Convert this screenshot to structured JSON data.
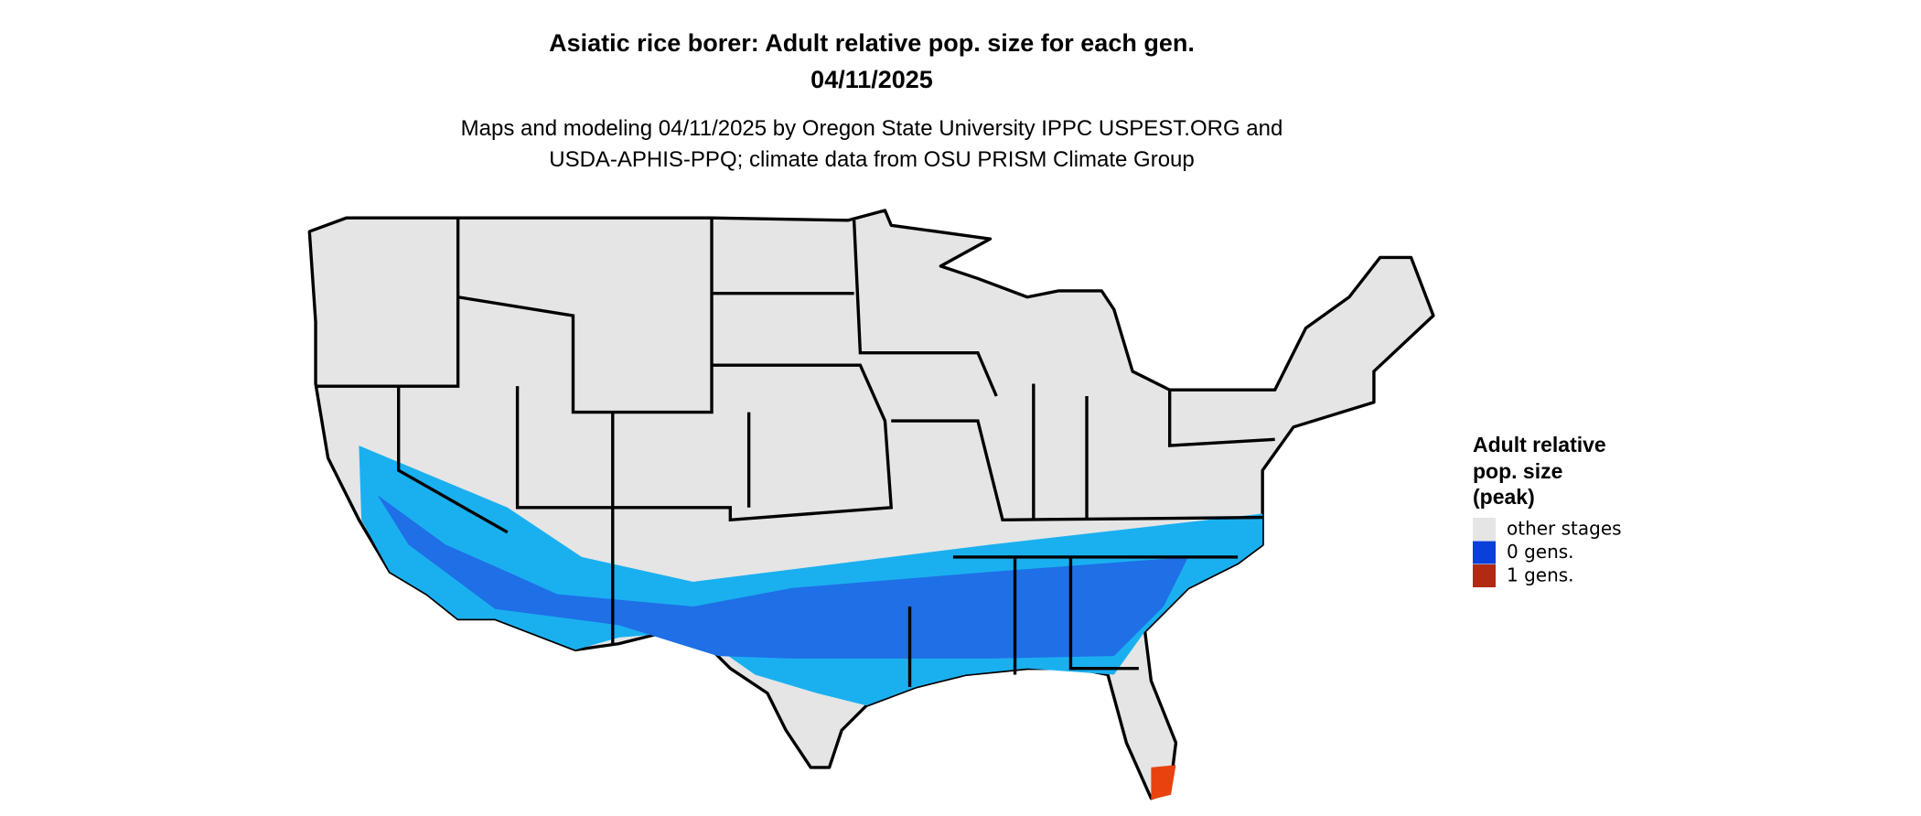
{
  "header": {
    "title": [
      "Asiatic rice borer: Adult relative pop. size for each gen.",
      "04/11/2025"
    ],
    "subtitle": [
      "Maps and modeling 04/11/2025 by Oregon State University IPPC USPEST.ORG and",
      "USDA-APHIS-PPQ; climate data from OSU PRISM Climate Group"
    ]
  },
  "legend": {
    "title": [
      "Adult relative",
      "pop. size",
      "(peak)"
    ],
    "items": [
      {
        "label": "other stages",
        "color": "#e5e5e5"
      },
      {
        "label": "0 gens.",
        "color": "#0a3fd8"
      },
      {
        "label": "1 gens.",
        "color": "#b22a13"
      }
    ]
  }
}
